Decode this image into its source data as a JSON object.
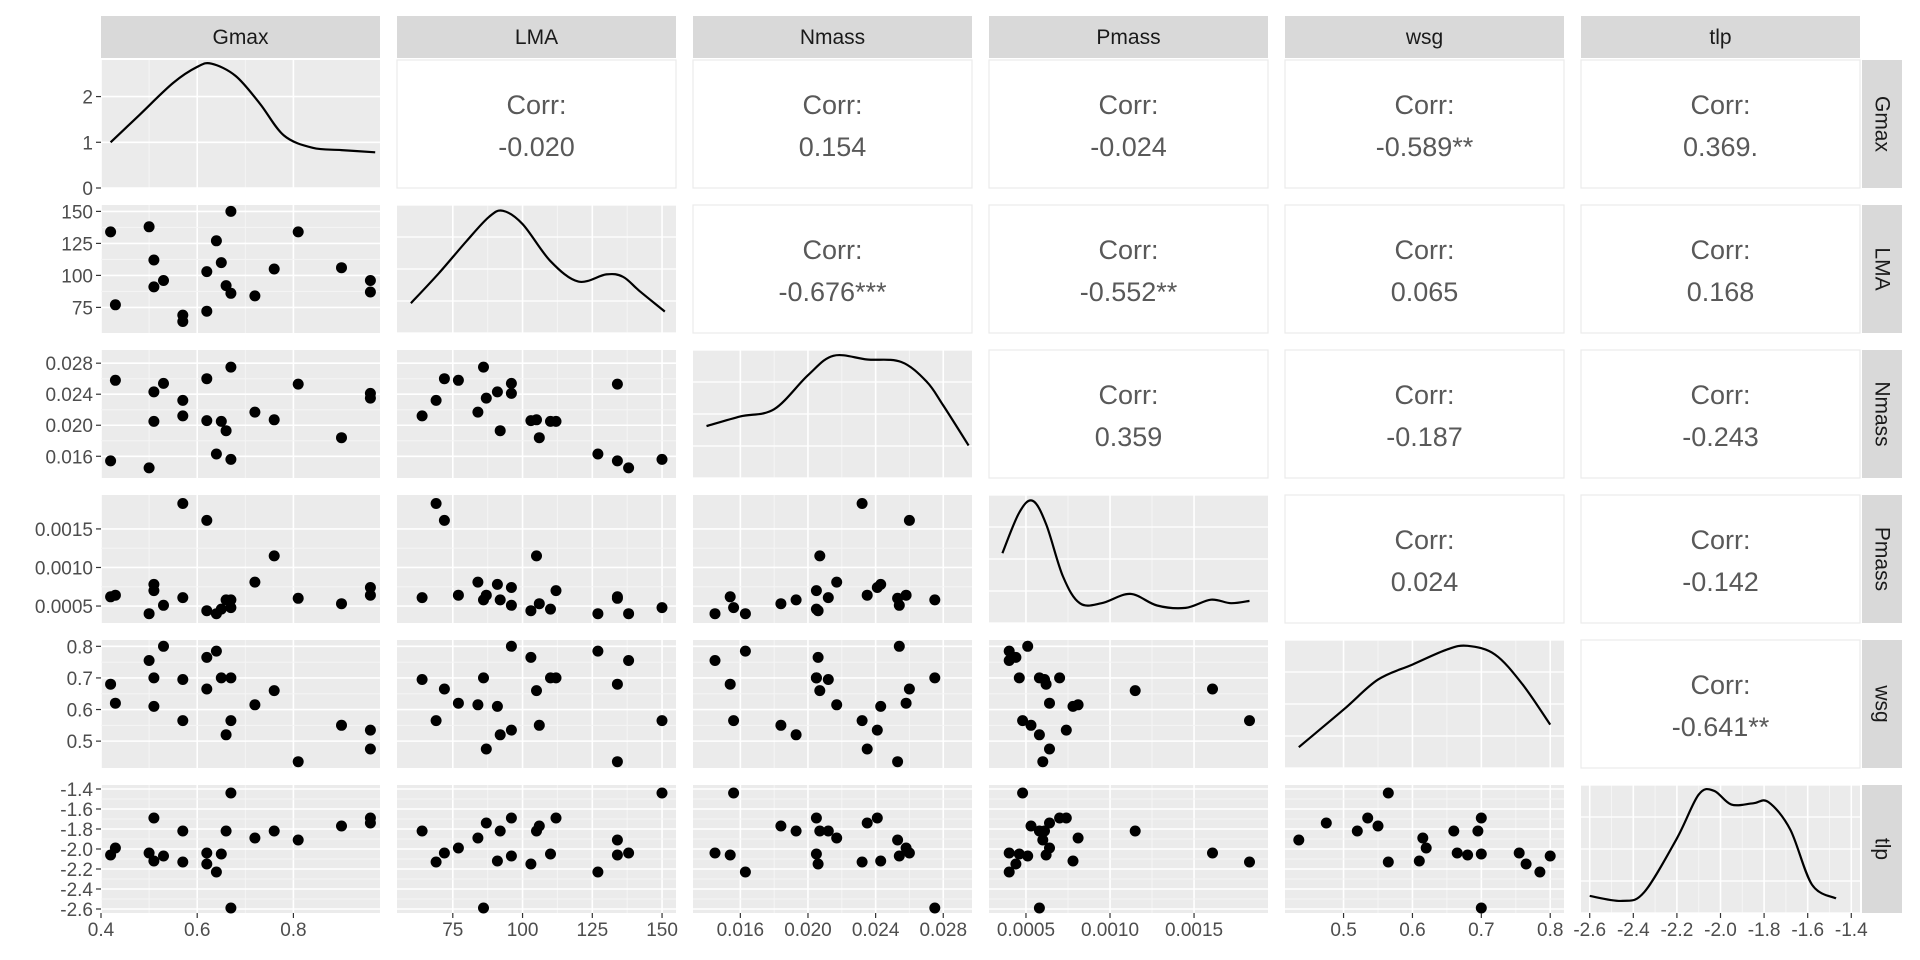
{
  "variables": [
    "Gmax",
    "LMA",
    "Nmass",
    "Pmass",
    "wsg",
    "tlp"
  ],
  "chart_data": {
    "type": "scatter",
    "title": "",
    "subtitle": "",
    "layout": "pairs-matrix",
    "diagonal": "density",
    "upper": "correlation",
    "corr_label": "Corr:",
    "grid": true,
    "axes": {
      "Gmax": {
        "range": [
          0.4,
          0.98
        ],
        "ticks": [
          0.4,
          0.6,
          0.8
        ],
        "tick_labels": [
          "0.4",
          "0.6",
          "0.8"
        ],
        "density_range": [
          0,
          2.8
        ],
        "density_ticks": [
          0,
          1,
          2
        ],
        "density_tick_labels": [
          "0",
          "1",
          "2"
        ]
      },
      "LMA": {
        "range": [
          55,
          155
        ],
        "ticks": [
          75,
          100,
          125,
          150
        ],
        "tick_labels": [
          "75",
          "100",
          "125",
          "150"
        ]
      },
      "Nmass": {
        "range": [
          0.0132,
          0.0297
        ],
        "ticks": [
          0.016,
          0.02,
          0.024,
          0.028
        ],
        "tick_labels": [
          "0.016",
          "0.020",
          "0.024",
          "0.028"
        ]
      },
      "Pmass": {
        "range": [
          0.00028,
          0.00194
        ],
        "ticks": [
          0.0005,
          0.001,
          0.0015
        ],
        "tick_labels": [
          "0.0005",
          "0.0010",
          "0.0015"
        ]
      },
      "wsg": {
        "range": [
          0.415,
          0.82
        ],
        "ticks": [
          0.5,
          0.6,
          0.7,
          0.8
        ],
        "tick_labels": [
          "0.5",
          "0.6",
          "0.7",
          "0.8"
        ]
      },
      "tlp": {
        "range": [
          -2.64,
          -1.36
        ],
        "ticks": [
          -2.6,
          -2.4,
          -2.2,
          -2.0,
          -1.8,
          -1.6,
          -1.4
        ],
        "tick_labels": [
          "-2.6",
          "-2.4",
          "-2.2",
          "-2.0",
          "-1.8",
          "-1.6",
          "-1.4"
        ]
      }
    },
    "correlations": [
      {
        "row": "Gmax",
        "col": "LMA",
        "value": "-0.020"
      },
      {
        "row": "Gmax",
        "col": "Nmass",
        "value": "0.154"
      },
      {
        "row": "Gmax",
        "col": "Pmass",
        "value": "-0.024"
      },
      {
        "row": "Gmax",
        "col": "wsg",
        "value": "-0.589**"
      },
      {
        "row": "Gmax",
        "col": "tlp",
        "value": "0.369."
      },
      {
        "row": "LMA",
        "col": "Nmass",
        "value": "-0.676***"
      },
      {
        "row": "LMA",
        "col": "Pmass",
        "value": "-0.552**"
      },
      {
        "row": "LMA",
        "col": "wsg",
        "value": "0.065"
      },
      {
        "row": "LMA",
        "col": "tlp",
        "value": "0.168"
      },
      {
        "row": "Nmass",
        "col": "Pmass",
        "value": "0.359"
      },
      {
        "row": "Nmass",
        "col": "wsg",
        "value": "-0.187"
      },
      {
        "row": "Nmass",
        "col": "tlp",
        "value": "-0.243"
      },
      {
        "row": "Pmass",
        "col": "wsg",
        "value": "0.024"
      },
      {
        "row": "Pmass",
        "col": "tlp",
        "value": "-0.142"
      },
      {
        "row": "wsg",
        "col": "tlp",
        "value": "-0.641**"
      }
    ],
    "densities": {
      "Gmax": {
        "x": [
          0.42,
          0.48,
          0.55,
          0.6,
          0.63,
          0.68,
          0.73,
          0.78,
          0.84,
          0.9,
          0.97
        ],
        "y": [
          1.0,
          1.6,
          2.3,
          2.65,
          2.72,
          2.45,
          1.85,
          1.15,
          0.88,
          0.83,
          0.78
        ]
      },
      "LMA": {
        "x": [
          60,
          70,
          80,
          88,
          93,
          100,
          110,
          120,
          130,
          136,
          142,
          151
        ],
        "y": [
          0.2,
          0.45,
          0.72,
          0.92,
          0.97,
          0.86,
          0.55,
          0.38,
          0.44,
          0.42,
          0.3,
          0.13
        ]
      },
      "Nmass": {
        "x": [
          0.014,
          0.016,
          0.018,
          0.02,
          0.0215,
          0.0235,
          0.0255,
          0.027,
          0.028,
          0.0295
        ],
        "y": [
          0.38,
          0.46,
          0.52,
          0.8,
          0.96,
          0.93,
          0.91,
          0.75,
          0.55,
          0.22
        ]
      },
      "Pmass": {
        "x": [
          0.00036,
          0.00046,
          0.00054,
          0.00062,
          0.00072,
          0.00082,
          0.00095,
          0.00112,
          0.00128,
          0.00145,
          0.0016,
          0.00172,
          0.00183
        ],
        "y": [
          0.55,
          0.9,
          1.0,
          0.8,
          0.35,
          0.12,
          0.12,
          0.2,
          0.1,
          0.08,
          0.15,
          0.12,
          0.14
        ]
      },
      "wsg": {
        "x": [
          0.435,
          0.5,
          0.55,
          0.6,
          0.65,
          0.68,
          0.72,
          0.76,
          0.8
        ],
        "y": [
          0.12,
          0.42,
          0.66,
          0.78,
          0.9,
          0.93,
          0.86,
          0.62,
          0.3
        ]
      },
      "tlp": {
        "x": [
          -2.6,
          -2.45,
          -2.35,
          -2.2,
          -2.1,
          -2.03,
          -1.95,
          -1.85,
          -1.78,
          -1.68,
          -1.58,
          -1.47
        ],
        "y": [
          0.09,
          0.05,
          0.12,
          0.55,
          0.9,
          0.93,
          0.82,
          0.83,
          0.84,
          0.62,
          0.18,
          0.07
        ]
      }
    },
    "observations": [
      {
        "Gmax": 0.42,
        "LMA": 134,
        "Nmass": 0.0154,
        "Pmass": 0.00062,
        "wsg": 0.68,
        "tlp": -2.06
      },
      {
        "Gmax": 0.43,
        "LMA": 77,
        "Nmass": 0.0258,
        "Pmass": 0.00064,
        "wsg": 0.62,
        "tlp": -1.99
      },
      {
        "Gmax": 0.5,
        "LMA": 138,
        "Nmass": 0.0145,
        "Pmass": 0.0004,
        "wsg": 0.755,
        "tlp": -2.04
      },
      {
        "Gmax": 0.51,
        "LMA": 91,
        "Nmass": 0.0243,
        "Pmass": 0.00078,
        "wsg": 0.61,
        "tlp": -2.12
      },
      {
        "Gmax": 0.51,
        "LMA": 112,
        "Nmass": 0.0205,
        "Pmass": 0.0007,
        "wsg": 0.7,
        "tlp": -1.69
      },
      {
        "Gmax": 0.53,
        "LMA": 96,
        "Nmass": 0.0254,
        "Pmass": 0.00051,
        "wsg": 0.8,
        "tlp": -2.07
      },
      {
        "Gmax": 0.57,
        "LMA": 69,
        "Nmass": 0.0232,
        "Pmass": 0.00183,
        "wsg": 0.565,
        "tlp": -2.13
      },
      {
        "Gmax": 0.57,
        "LMA": 64,
        "Nmass": 0.0212,
        "Pmass": 0.00061,
        "wsg": 0.695,
        "tlp": -1.82
      },
      {
        "Gmax": 0.62,
        "LMA": 72,
        "Nmass": 0.026,
        "Pmass": 0.00161,
        "wsg": 0.665,
        "tlp": -2.04
      },
      {
        "Gmax": 0.62,
        "LMA": 103,
        "Nmass": 0.0206,
        "Pmass": 0.00044,
        "wsg": 0.765,
        "tlp": -2.15
      },
      {
        "Gmax": 0.64,
        "LMA": 127,
        "Nmass": 0.0163,
        "Pmass": 0.0004,
        "wsg": 0.785,
        "tlp": -2.23
      },
      {
        "Gmax": 0.65,
        "LMA": 110,
        "Nmass": 0.0205,
        "Pmass": 0.00046,
        "wsg": 0.7,
        "tlp": -2.05
      },
      {
        "Gmax": 0.66,
        "LMA": 92,
        "Nmass": 0.0193,
        "Pmass": 0.00058,
        "wsg": 0.52,
        "tlp": -1.82
      },
      {
        "Gmax": 0.67,
        "LMA": 150,
        "Nmass": 0.0156,
        "Pmass": 0.00048,
        "wsg": 0.565,
        "tlp": -1.44
      },
      {
        "Gmax": 0.67,
        "LMA": 86,
        "Nmass": 0.0275,
        "Pmass": 0.00058,
        "wsg": 0.7,
        "tlp": -2.59
      },
      {
        "Gmax": 0.72,
        "LMA": 84,
        "Nmass": 0.0217,
        "Pmass": 0.00081,
        "wsg": 0.615,
        "tlp": -1.89
      },
      {
        "Gmax": 0.76,
        "LMA": 105,
        "Nmass": 0.0207,
        "Pmass": 0.00115,
        "wsg": 0.66,
        "tlp": -1.82
      },
      {
        "Gmax": 0.81,
        "LMA": 134,
        "Nmass": 0.0253,
        "Pmass": 0.0006,
        "wsg": 0.435,
        "tlp": -1.91
      },
      {
        "Gmax": 0.9,
        "LMA": 106,
        "Nmass": 0.0184,
        "Pmass": 0.00053,
        "wsg": 0.55,
        "tlp": -1.77
      },
      {
        "Gmax": 0.96,
        "LMA": 96,
        "Nmass": 0.0241,
        "Pmass": 0.00074,
        "wsg": 0.535,
        "tlp": -1.69
      },
      {
        "Gmax": 0.96,
        "LMA": 87,
        "Nmass": 0.0235,
        "Pmass": 0.00064,
        "wsg": 0.475,
        "tlp": -1.74
      }
    ]
  }
}
